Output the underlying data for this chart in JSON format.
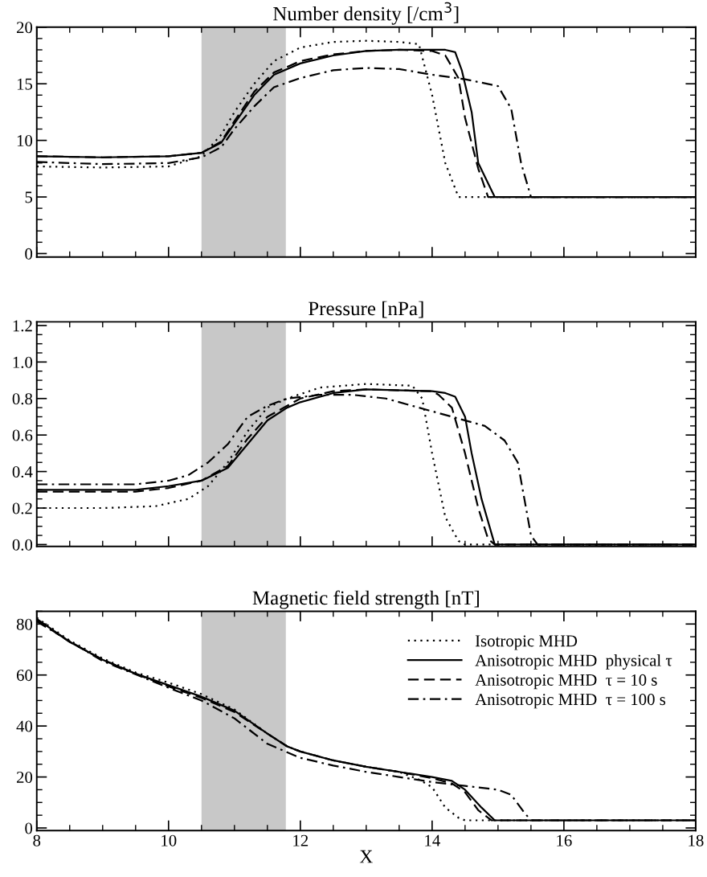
{
  "chart_data": [
    {
      "type": "line",
      "title": "Number density [/cm$^{3}$]",
      "xlim": [
        8,
        18
      ],
      "xticks": [
        8,
        10,
        12,
        14,
        16,
        18
      ],
      "ylim": [
        -0.3,
        20
      ],
      "yticks": [
        0,
        5,
        10,
        15,
        20
      ],
      "tick_labels": "y",
      "grid": false,
      "legend": false,
      "bands": [
        {
          "axis": "x",
          "from": 10.5,
          "to": 11.78,
          "color": "#c8c8c8"
        }
      ],
      "series": [
        {
          "color": "#000000",
          "line_style": "dotted",
          "x": [
            8,
            9,
            10,
            10.5,
            10.8,
            11,
            11.3,
            11.6,
            12,
            12.5,
            13,
            13.5,
            13.8,
            14,
            14.2,
            14.4,
            18
          ],
          "values": [
            7.7,
            7.6,
            7.7,
            8.6,
            10.5,
            12.5,
            15,
            17,
            18.2,
            18.7,
            18.8,
            18.7,
            18.5,
            14,
            8,
            5,
            5
          ]
        },
        {
          "color": "#000000",
          "line_style": "solid",
          "x": [
            8,
            9,
            10,
            10.5,
            10.8,
            11,
            11.3,
            11.6,
            12,
            12.5,
            13,
            13.5,
            14,
            14.2,
            14.35,
            14.45,
            14.6,
            14.7,
            14.95,
            18
          ],
          "values": [
            8.6,
            8.5,
            8.6,
            8.9,
            9.8,
            11.5,
            14,
            15.8,
            16.8,
            17.5,
            17.9,
            18,
            18,
            18,
            17.8,
            16.2,
            12.5,
            8,
            5,
            5
          ]
        },
        {
          "color": "#000000",
          "line_style": "dashed",
          "x": [
            8,
            9,
            10,
            10.5,
            10.8,
            11,
            11.3,
            11.6,
            12,
            12.5,
            13,
            13.5,
            14,
            14.2,
            14.4,
            14.5,
            14.7,
            14.85,
            18
          ],
          "values": [
            8.6,
            8.5,
            8.6,
            8.9,
            9.9,
            11.7,
            14.3,
            16,
            17,
            17.6,
            17.9,
            18,
            17.9,
            17.5,
            15.5,
            12,
            7.5,
            5,
            5
          ]
        },
        {
          "color": "#000000",
          "line_style": "dashdot",
          "x": [
            8,
            9,
            10,
            10.5,
            10.8,
            11,
            11.3,
            11.6,
            12,
            12.5,
            13,
            13.5,
            14,
            14.5,
            15,
            15.2,
            15.35,
            15.5,
            18
          ],
          "values": [
            8.1,
            7.9,
            8.0,
            8.5,
            9.4,
            11,
            13,
            14.7,
            15.5,
            16.2,
            16.4,
            16.3,
            15.8,
            15.4,
            14.8,
            12.8,
            8,
            5,
            5
          ]
        }
      ]
    },
    {
      "type": "line",
      "title": "Pressure [nPa]",
      "xlim": [
        8,
        18
      ],
      "xticks": [
        8,
        10,
        12,
        14,
        16,
        18
      ],
      "ylim": [
        -0.01,
        1.22
      ],
      "yticks": [
        {
          "value": 0,
          "label": "0.0"
        },
        {
          "value": 0.2,
          "label": "0.2"
        },
        {
          "value": 0.4,
          "label": "0.4"
        },
        {
          "value": 0.6,
          "label": "0.6"
        },
        {
          "value": 0.8,
          "label": "0.8"
        },
        {
          "value": 1.0,
          "label": "1.0"
        },
        {
          "value": 1.2,
          "label": "1.2"
        }
      ],
      "tick_labels": "y",
      "grid": false,
      "legend": false,
      "bands": [
        {
          "axis": "x",
          "from": 10.5,
          "to": 11.78,
          "color": "#c8c8c8"
        }
      ],
      "series": [
        {
          "color": "#000000",
          "line_style": "dotted",
          "x": [
            8,
            9,
            9.8,
            10.3,
            10.6,
            10.9,
            11.2,
            11.5,
            11.8,
            12.3,
            13,
            13.7,
            13.85,
            14,
            14.2,
            14.4,
            14.5,
            18
          ],
          "values": [
            0.2,
            0.2,
            0.21,
            0.25,
            0.32,
            0.45,
            0.62,
            0.75,
            0.8,
            0.86,
            0.88,
            0.87,
            0.8,
            0.5,
            0.15,
            0.02,
            0,
            0
          ]
        },
        {
          "color": "#000000",
          "line_style": "solid",
          "x": [
            8,
            9.5,
            10,
            10.5,
            10.9,
            11.2,
            11.5,
            11.8,
            12,
            12.5,
            13,
            14,
            14.2,
            14.35,
            14.5,
            14.6,
            14.75,
            14.95,
            18
          ],
          "values": [
            0.3,
            0.3,
            0.32,
            0.35,
            0.42,
            0.55,
            0.68,
            0.75,
            0.78,
            0.83,
            0.85,
            0.84,
            0.83,
            0.81,
            0.7,
            0.5,
            0.25,
            0,
            0
          ]
        },
        {
          "color": "#000000",
          "line_style": "dashed",
          "x": [
            8,
            9.5,
            10,
            10.5,
            10.9,
            11.2,
            11.5,
            12,
            12.5,
            13,
            14,
            14.1,
            14.3,
            14.5,
            14.7,
            14.85,
            14.95,
            18
          ],
          "values": [
            0.29,
            0.29,
            0.31,
            0.35,
            0.43,
            0.58,
            0.7,
            0.8,
            0.84,
            0.85,
            0.84,
            0.82,
            0.75,
            0.5,
            0.2,
            0.03,
            0,
            0
          ]
        },
        {
          "color": "#000000",
          "line_style": "dashdot",
          "x": [
            8,
            9.5,
            10,
            10.3,
            10.6,
            10.9,
            11.2,
            11.5,
            11.8,
            12.3,
            12.8,
            13.3,
            13.8,
            14.3,
            14.8,
            15.1,
            15.3,
            15.4,
            15.5,
            15.6,
            18
          ],
          "values": [
            0.33,
            0.33,
            0.35,
            0.38,
            0.45,
            0.55,
            0.7,
            0.76,
            0.8,
            0.82,
            0.82,
            0.8,
            0.75,
            0.7,
            0.65,
            0.57,
            0.45,
            0.25,
            0.05,
            0,
            0
          ]
        }
      ]
    },
    {
      "type": "line",
      "title": "Magnetic field strength [nT]",
      "xlabel": "X",
      "xlim": [
        8,
        18
      ],
      "xticks": [
        8,
        10,
        12,
        14,
        16,
        18
      ],
      "ylim": [
        -1,
        85
      ],
      "yticks": [
        0,
        20,
        40,
        60,
        80
      ],
      "grid": false,
      "legend": "top right",
      "bands": [
        {
          "axis": "x",
          "from": 10.5,
          "to": 11.78,
          "color": "#c8c8c8"
        }
      ],
      "series": [
        {
          "name": "Isotropic MHD",
          "color": "#000000",
          "line_style": "dotted",
          "x": [
            8,
            8.5,
            9,
            9.5,
            10,
            10.5,
            11,
            11.5,
            11.8,
            12,
            12.5,
            13,
            13.5,
            13.8,
            14,
            14.2,
            14.4,
            14.5,
            18
          ],
          "values": [
            82.5,
            73.5,
            66.5,
            61,
            57,
            52.5,
            46.5,
            37,
            32,
            30,
            26.5,
            24,
            22,
            19,
            16,
            8,
            4,
            3,
            3
          ]
        },
        {
          "name": "Anisotropic MHD  physical τ",
          "color": "#000000",
          "line_style": "solid",
          "x": [
            8,
            8.5,
            9,
            9.5,
            10,
            10.5,
            11,
            11.5,
            11.8,
            12,
            12.5,
            13,
            13.5,
            14,
            14.3,
            14.5,
            14.75,
            14.95,
            18
          ],
          "values": [
            82,
            73,
            66,
            60.5,
            56,
            51.5,
            46,
            37,
            32,
            30,
            26.5,
            24,
            22,
            20,
            18.5,
            15,
            8,
            3,
            3
          ]
        },
        {
          "name": "Anisotropic MHD  τ = 10 s",
          "color": "#000000",
          "line_style": "dashed",
          "x": [
            8,
            8.5,
            9,
            9.5,
            10,
            10.5,
            11,
            11.5,
            11.8,
            12,
            12.5,
            13,
            13.5,
            14,
            14.3,
            14.5,
            14.7,
            14.9,
            18
          ],
          "values": [
            81.5,
            73,
            66,
            60.5,
            55.5,
            51,
            45.5,
            37,
            32,
            30,
            26.5,
            24,
            22,
            19.5,
            17.5,
            14,
            7,
            3,
            3
          ]
        },
        {
          "name": "Anisotropic MHD  τ = 100 s",
          "color": "#000000",
          "line_style": "dashdot",
          "x": [
            8,
            9,
            10,
            10.5,
            11,
            11.5,
            12,
            12.5,
            13,
            13.5,
            14,
            14.5,
            15,
            15.2,
            15.4,
            15.5,
            18
          ],
          "values": [
            81,
            65.5,
            55,
            50,
            43,
            33,
            27.5,
            24.5,
            22,
            20,
            18,
            16.5,
            15,
            13,
            6,
            3,
            3
          ]
        }
      ]
    }
  ]
}
